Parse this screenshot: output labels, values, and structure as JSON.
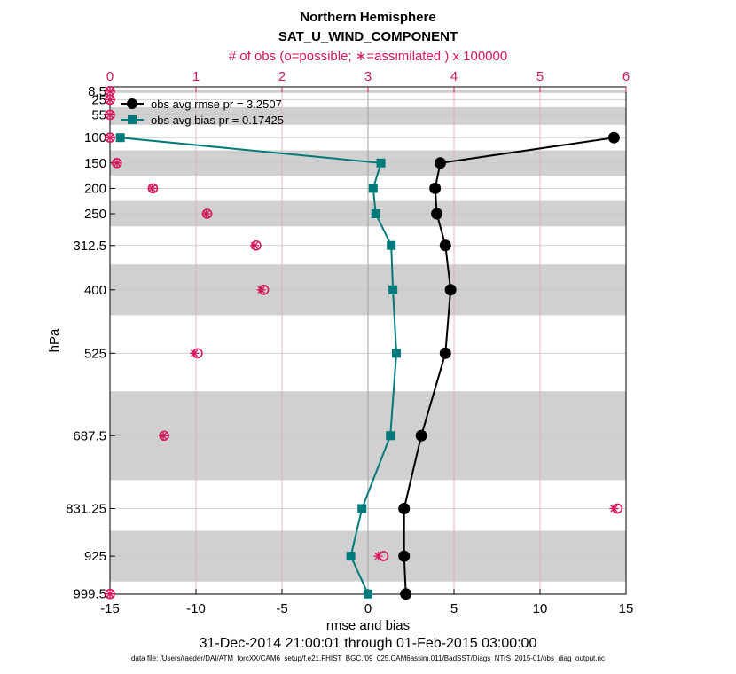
{
  "chart_data": {
    "type": "line",
    "title": "Northern Hemisphere",
    "subtitle": "SAT_U_WIND_COMPONENT",
    "top_axis_label": "# of obs (o=possible; ∗=assimilated ) x 100000",
    "xlabel": "rmse and bias",
    "ylabel": "hPa",
    "date_range": "31-Dec-2014 21:00:01 through 01-Feb-2015 03:00:00",
    "data_file": "data file: /Users/raeder/DAI/ATM_forcXX/CAM6_setup/f.e21.FHIST_BGC.f09_025.CAM6assim.011/BadSST/Diags_NTrS_2015-01/obs_diag_output.nc",
    "xlim": [
      -15,
      15
    ],
    "x_ticks": [
      -15,
      -10,
      -5,
      0,
      5,
      10,
      15
    ],
    "x_tick_labels": [
      "-15",
      "-10",
      "-5",
      "0",
      "5",
      "10",
      "15"
    ],
    "top_xlim": [
      0,
      6
    ],
    "top_ticks": [
      0,
      1,
      2,
      3,
      4,
      5,
      6
    ],
    "top_tick_labels": [
      "0",
      "1",
      "2",
      "3",
      "4",
      "5",
      "6"
    ],
    "levels": [
      8.5,
      25,
      55,
      100,
      150,
      200,
      250,
      312.5,
      400,
      525,
      687.5,
      831.25,
      925,
      999.5
    ],
    "level_labels": [
      "8.5",
      "25",
      "55",
      "100",
      "150",
      "200",
      "250",
      "312.5",
      "400",
      "525",
      "687.5",
      "831.25",
      "925",
      "999.5"
    ],
    "shaded_layers": [
      [
        5,
        12
      ],
      [
        40,
        75
      ],
      [
        125,
        175
      ],
      [
        225,
        275
      ],
      [
        350,
        450
      ],
      [
        600,
        775
      ],
      [
        875,
        975
      ]
    ],
    "series": [
      {
        "name": "obs avg rmse pr = 3.2507",
        "color": "#000000",
        "marker": "circle",
        "levels": [
          100,
          150,
          200,
          250,
          312.5,
          400,
          525,
          687.5,
          831.25,
          925,
          999.5
        ],
        "values": [
          14.3,
          4.2,
          3.9,
          4.0,
          4.5,
          4.8,
          4.5,
          3.1,
          2.1,
          2.1,
          2.2
        ]
      },
      {
        "name": "obs avg bias pr = 0.17425",
        "color": "#007A7A",
        "marker": "square",
        "levels": [
          100,
          150,
          200,
          250,
          312.5,
          400,
          525,
          687.5,
          831.25,
          925,
          999.5
        ],
        "values": [
          -14.4,
          0.75,
          0.3,
          0.45,
          1.35,
          1.45,
          1.65,
          1.3,
          -0.35,
          -1.0,
          0.0
        ]
      }
    ],
    "obs_count": {
      "color": "#D6185C",
      "levels": [
        8.5,
        25,
        55,
        100,
        150,
        200,
        250,
        312.5,
        400,
        525,
        687.5,
        831.25,
        925,
        999.5
      ],
      "possible": [
        0.0,
        0.0,
        0.0,
        0.0,
        0.08,
        0.5,
        1.13,
        1.7,
        1.79,
        1.02,
        0.63,
        5.9,
        3.18,
        0.0
      ],
      "assimilated": [
        0.0,
        0.0,
        0.0,
        0.0,
        0.08,
        0.49,
        1.12,
        1.68,
        1.76,
        0.98,
        0.62,
        5.86,
        3.12,
        0.0
      ]
    },
    "legend_position": "top-left"
  }
}
